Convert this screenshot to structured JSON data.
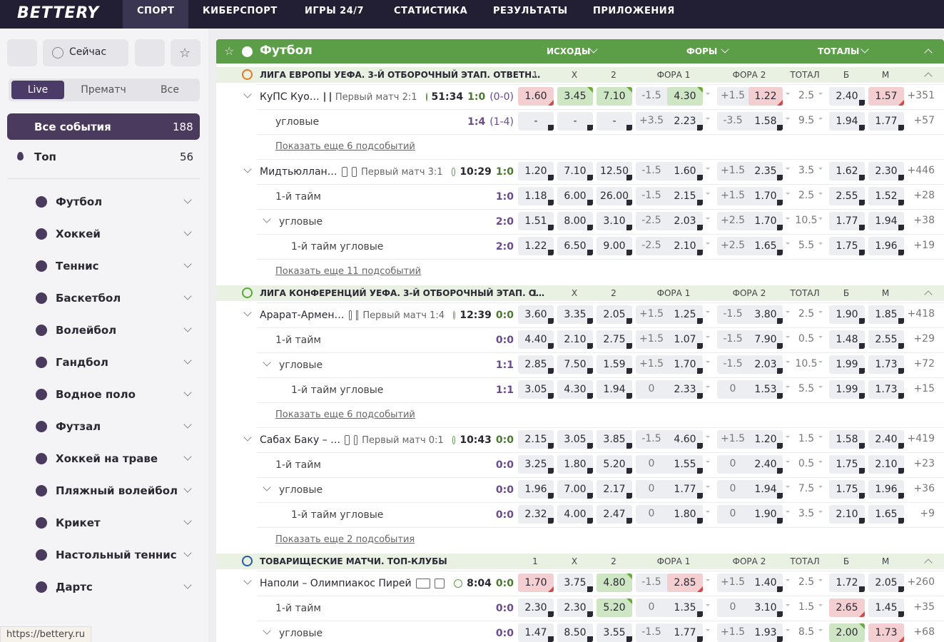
{
  "nav": {
    "logo": "BETTERY",
    "items": [
      "СПОРТ",
      "КИБЕРСПОРТ",
      "ИГРЫ 24/7",
      "СТАТИСТИКА",
      "РЕЗУЛЬТАТЫ",
      "ПРИЛОЖЕНИЯ"
    ]
  },
  "sidebar": {
    "now": "Сейчас",
    "tabs": [
      "Live",
      "Прематч",
      "Все"
    ],
    "all": {
      "label": "Все события",
      "count": 188
    },
    "top": {
      "label": "Топ",
      "count": 56
    },
    "sports": [
      "Футбол",
      "Хоккей",
      "Теннис",
      "Баскетбол",
      "Волейбол",
      "Гандбол",
      "Водное поло",
      "Футзал",
      "Хоккей на траве",
      "Пляжный волейбол",
      "Крикет",
      "Настольный теннис",
      "Дартс"
    ]
  },
  "sport": {
    "title": "Футбол",
    "groups": [
      "ИСХОДЫ",
      "ФОРЫ",
      "ТОТАЛЫ"
    ]
  },
  "columns": [
    "1",
    "X",
    "2",
    "ФОРА 1",
    "ФОРА 2",
    "ТОТАЛ",
    "Б",
    "М"
  ],
  "leagues": [
    {
      "name": "ЛИГА ЕВРОПЫ УЕФА. 3-Й ОТБОРОЧНЫЙ ЭТАП. ОТВЕТН…",
      "icon": "#e07b2a",
      "items": [
        {
          "name": "КуПС Куо…",
          "info": "Первый матч 2:1",
          "time": "51:34",
          "score": "1:0",
          "extra": "(0-0)",
          "cells": [
            "1.60",
            "3.45",
            "7.10",
            "-1.5",
            "4.30",
            "+1.5",
            "1.22",
            "2.5",
            "2.40",
            "1.57"
          ],
          "more": "+351",
          "down": [
            0,
            6,
            9
          ],
          "up": [
            1,
            2,
            4
          ]
        },
        {
          "name": "угловые",
          "indent": 1,
          "score": "1:4",
          "extra": "(1-4)",
          "cells": [
            "-",
            "-",
            "-",
            "+3.5",
            "2.23",
            "-3.5",
            "1.58",
            "9.5",
            "1.94",
            "1.77"
          ],
          "more": "+57"
        },
        {
          "link": "Показать еще 6 подсобытий"
        },
        {
          "name": "Мидтьюллан…",
          "info": "Первый матч 3:1",
          "time": "10:29",
          "score": "1:0",
          "cells": [
            "1.20",
            "7.10",
            "12.50",
            "-1.5",
            "1.60",
            "+1.5",
            "2.35",
            "3.5",
            "1.62",
            "2.30"
          ],
          "more": "+446"
        },
        {
          "name": "1-й тайм",
          "indent": 1,
          "score": "1:0",
          "cells": [
            "1.18",
            "6.00",
            "26.00",
            "-1.5",
            "2.15",
            "+1.5",
            "1.70",
            "2.5",
            "2.55",
            "1.52"
          ],
          "more": "+28"
        },
        {
          "name": "угловые",
          "indent": 1,
          "expand": true,
          "score": "2:0",
          "cells": [
            "1.51",
            "8.00",
            "3.10",
            "-2.5",
            "2.03",
            "+2.5",
            "1.70",
            "10.5",
            "1.77",
            "1.94"
          ],
          "more": "+38"
        },
        {
          "name": "1-й тайм угловые",
          "indent": 2,
          "score": "2:0",
          "cells": [
            "1.22",
            "6.50",
            "9.00",
            "-2.5",
            "2.10",
            "+2.5",
            "1.65",
            "5.5",
            "1.75",
            "1.96"
          ],
          "more": "+19"
        },
        {
          "link": "Показать еще 11 подсобытий"
        }
      ]
    },
    {
      "name": "ЛИГА КОНФЕРЕНЦИЙ УЕФА. 3-Й ОТБОРОЧНЫЙ ЭТАП. О…",
      "icon": "#5aa83a",
      "items": [
        {
          "name": "Арарат-Армен…",
          "info": "Первый матч 1:4",
          "time": "12:39",
          "score": "0:0",
          "cells": [
            "3.60",
            "3.35",
            "2.05",
            "+1.5",
            "1.25",
            "-1.5",
            "3.80",
            "2.5",
            "1.90",
            "1.85"
          ],
          "more": "+418"
        },
        {
          "name": "1-й тайм",
          "indent": 1,
          "score": "0:0",
          "cells": [
            "4.40",
            "2.10",
            "2.75",
            "+1.5",
            "1.07",
            "-1.5",
            "7.90",
            "0.5",
            "1.48",
            "2.55"
          ],
          "more": "+29"
        },
        {
          "name": "угловые",
          "indent": 1,
          "expand": true,
          "score": "1:1",
          "cells": [
            "2.85",
            "7.50",
            "1.59",
            "+1.5",
            "1.70",
            "-1.5",
            "2.03",
            "10.5",
            "1.99",
            "1.73"
          ],
          "more": "+72"
        },
        {
          "name": "1-й тайм угловые",
          "indent": 2,
          "score": "1:1",
          "cells": [
            "3.05",
            "4.30",
            "1.94",
            "0",
            "2.33",
            "0",
            "1.53",
            "5.5",
            "1.99",
            "1.73"
          ],
          "more": "+15"
        },
        {
          "link": "Показать еще 6 подсобытий"
        },
        {
          "name": "Сабах Баку – …",
          "info": "Первый матч 0:1",
          "time": "10:43",
          "score": "0:0",
          "cells": [
            "2.15",
            "3.05",
            "3.85",
            "-1.5",
            "4.60",
            "+1.5",
            "1.20",
            "1.5",
            "1.58",
            "2.40"
          ],
          "more": "+419"
        },
        {
          "name": "1-й тайм",
          "indent": 1,
          "score": "0:0",
          "cells": [
            "3.25",
            "1.80",
            "5.20",
            "0",
            "1.55",
            "0",
            "2.40",
            "0.5",
            "1.75",
            "2.10"
          ],
          "more": "+23"
        },
        {
          "name": "угловые",
          "indent": 1,
          "expand": true,
          "score": "0:0",
          "cells": [
            "1.96",
            "7.00",
            "2.17",
            "0",
            "1.77",
            "0",
            "1.94",
            "7.5",
            "1.75",
            "1.96"
          ],
          "more": "+36"
        },
        {
          "name": "1-й тайм угловые",
          "indent": 2,
          "score": "0:0",
          "cells": [
            "2.32",
            "4.00",
            "2.47",
            "0",
            "1.80",
            "0",
            "1.90",
            "3.5",
            "2.10",
            "1.65"
          ],
          "more": "+9"
        },
        {
          "link": "Показать еще 2 подсобытия"
        }
      ]
    },
    {
      "name": "ТОВАРИЩЕСКИЕ МАТЧИ. ТОП-КЛУБЫ",
      "icon": "#2a5a9a",
      "items": [
        {
          "name": "Наполи – Олимпиакос Пирей",
          "time": "8:04",
          "score": "0:0",
          "cells": [
            "1.70",
            "3.75",
            "4.80",
            "-1.5",
            "2.85",
            "+1.5",
            "1.40",
            "2.5",
            "1.72",
            "2.05"
          ],
          "more": "+260",
          "down": [
            0,
            4
          ],
          "up": [
            2
          ]
        },
        {
          "name": "1-й тайм",
          "indent": 1,
          "score": "0:0",
          "cells": [
            "2.30",
            "2.30",
            "5.20",
            "0",
            "1.35",
            "0",
            "3.10",
            "1.5",
            "2.65",
            "1.45"
          ],
          "more": "+35",
          "up": [
            2
          ],
          "down": [
            8
          ]
        },
        {
          "name": "угловые",
          "indent": 1,
          "expand": true,
          "score": "0:0",
          "cells": [
            "1.47",
            "8.50",
            "3.55",
            "-1.5",
            "1.77",
            "+1.5",
            "1.93",
            "8.5",
            "2.00",
            "1.73"
          ],
          "more": "+68",
          "up": [
            8
          ],
          "down": [
            9
          ]
        }
      ]
    }
  ],
  "status": "https://bettery.ru"
}
